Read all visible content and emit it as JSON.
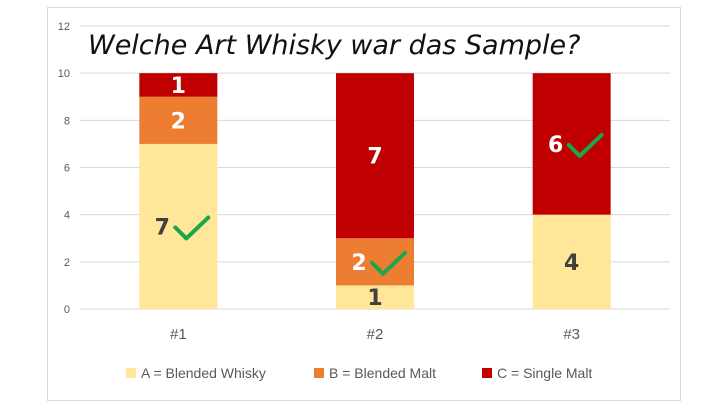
{
  "chart_data": {
    "type": "bar",
    "stacked": true,
    "title": "Welche Art Whisky war das Sample?",
    "categories": [
      "#1",
      "#2",
      "#3"
    ],
    "ylim": [
      0,
      12
    ],
    "yticks": [
      0,
      2,
      4,
      6,
      8,
      10,
      12
    ],
    "grid": true,
    "legend_position": "bottom",
    "series": [
      {
        "name": "A = Blended Whisky",
        "color": "#ffe699",
        "label_color": "#404040",
        "values": [
          7,
          1,
          4
        ]
      },
      {
        "name": "B = Blended Malt",
        "color": "#ed7d31",
        "label_color": "#ffffff",
        "values": [
          2,
          2,
          0
        ]
      },
      {
        "name": "C = Single Malt",
        "color": "#c00000",
        "label_color": "#ffffff",
        "values": [
          1,
          7,
          6
        ]
      }
    ],
    "correct_answers": [
      {
        "category": "#1",
        "series": 0
      },
      {
        "category": "#2",
        "series": 1
      },
      {
        "category": "#3",
        "series": 2
      }
    ],
    "checkmark_color": "#1aa64b",
    "grid_color": "#d9d9d9"
  }
}
